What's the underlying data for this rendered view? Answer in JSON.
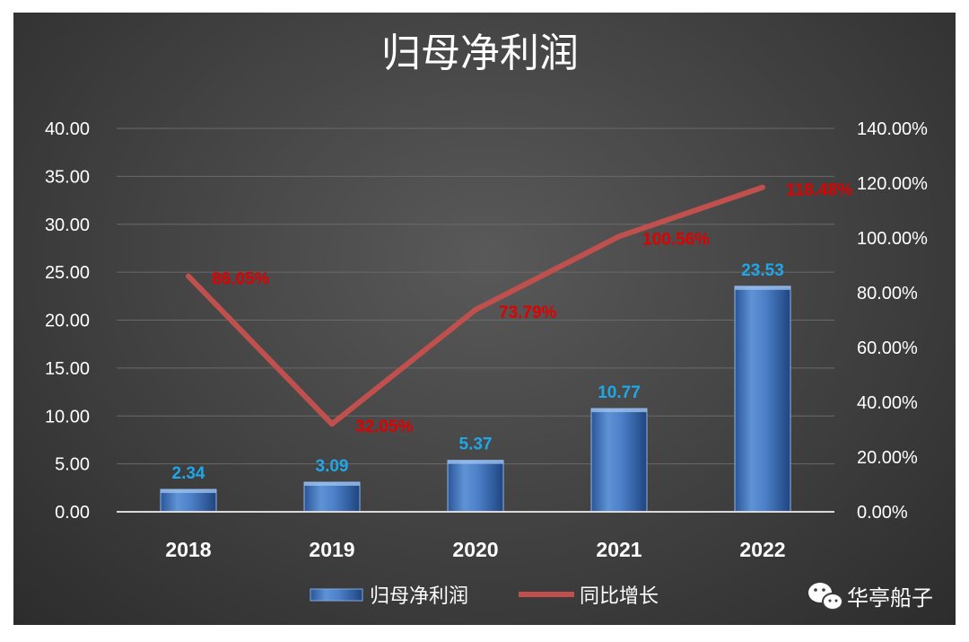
{
  "chart_data": {
    "type": "bar",
    "title": "归母净利润",
    "categories": [
      "2018",
      "2019",
      "2020",
      "2021",
      "2022"
    ],
    "series": [
      {
        "name": "归母净利润",
        "type": "bar",
        "axis": "left",
        "values": [
          2.34,
          3.09,
          5.37,
          10.77,
          23.53
        ],
        "labels": [
          "2.34",
          "3.09",
          "5.37",
          "10.77",
          "23.53"
        ],
        "color": "#3d6fb8"
      },
      {
        "name": "同比增长",
        "type": "line",
        "axis": "right",
        "values": [
          86.05,
          32.05,
          73.79,
          100.56,
          118.48
        ],
        "labels": [
          "86.05%",
          "32.05%",
          "73.79%",
          "100.56%",
          "118.48%"
        ],
        "color": "#c0504d"
      }
    ],
    "y_left": {
      "min": 0,
      "max": 40,
      "ticks": [
        "0.00",
        "5.00",
        "10.00",
        "15.00",
        "20.00",
        "25.00",
        "30.00",
        "35.00",
        "40.00"
      ]
    },
    "y_right": {
      "min": 0,
      "max": 140,
      "ticks": [
        "0.00%",
        "20.00%",
        "40.00%",
        "60.00%",
        "80.00%",
        "100.00%",
        "120.00%",
        "140.00%"
      ]
    },
    "grid": true,
    "legend_position": "bottom"
  },
  "watermark": {
    "text": "华亭船子",
    "icon": "wechat-icon"
  }
}
